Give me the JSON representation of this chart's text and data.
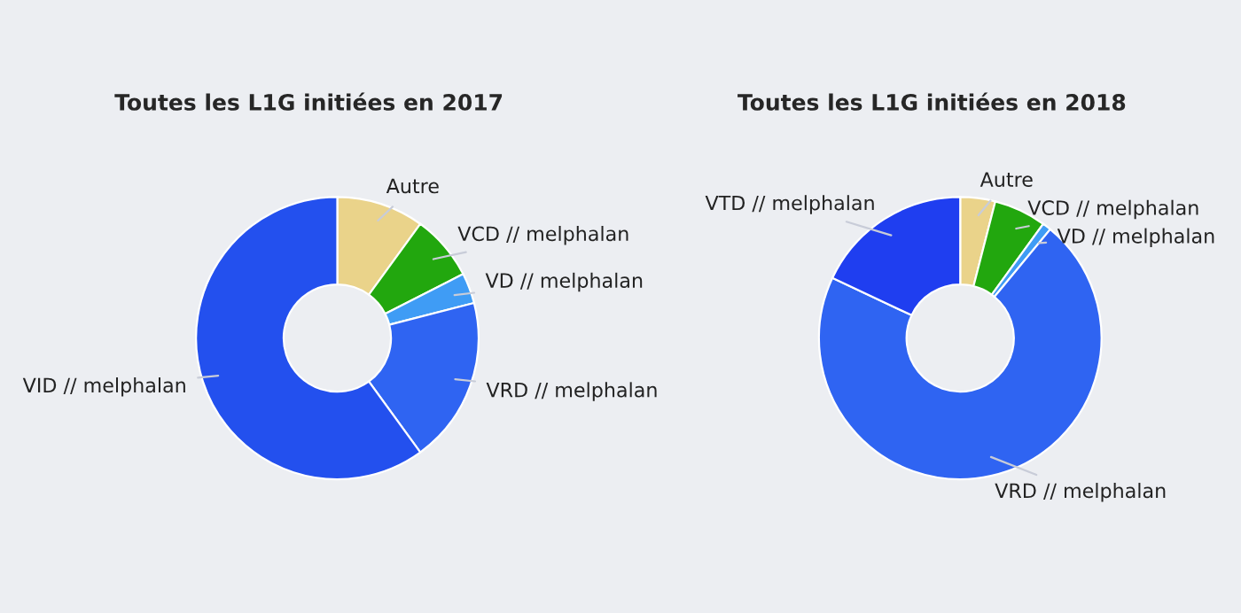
{
  "chart_data": [
    {
      "type": "donut",
      "title": "Toutes les L1G initiées en 2017",
      "categories": [
        "Autre",
        "VCD // melphalan",
        "VD // melphalan",
        "VRD // melphalan",
        "VID // melphalan"
      ],
      "values": [
        10,
        7.5,
        3.5,
        19,
        60
      ],
      "colors": [
        "#ead38a",
        "#22a70e",
        "#3f9cf5",
        "#2f64f2",
        "#2350ee"
      ]
    },
    {
      "type": "donut",
      "title": "Toutes les L1G initiées en 2018",
      "categories": [
        "Autre",
        "VCD // melphalan",
        "VD // melphalan",
        "VRD // melphalan",
        "VTD // melphalan"
      ],
      "values": [
        4,
        6,
        1,
        71,
        18
      ],
      "colors": [
        "#ead38a",
        "#22a70e",
        "#3f9cf5",
        "#2f64f2",
        "#1f3ef0"
      ]
    }
  ]
}
